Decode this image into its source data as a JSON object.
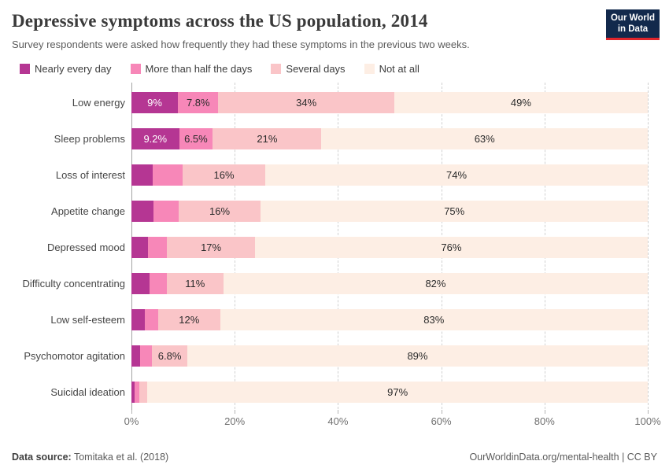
{
  "header": {
    "title": "Depressive symptoms across the US population, 2014",
    "subtitle": "Survey respondents were asked how frequently they had these symptoms in the previous two weeks.",
    "logo": {
      "line1": "Our World",
      "line2": "in Data",
      "bg_color": "#12294c",
      "stripe_color": "#e0252b"
    }
  },
  "legend": [
    {
      "label": "Nearly every day",
      "color": "#b53693"
    },
    {
      "label": "More than half the days",
      "color": "#f787b8"
    },
    {
      "label": "Several days",
      "color": "#fac5c8"
    },
    {
      "label": "Not at all",
      "color": "#fdeee4"
    }
  ],
  "chart_data": {
    "type": "bar",
    "orientation": "horizontal",
    "stacked": true,
    "categories": [
      "Low energy",
      "Sleep problems",
      "Loss of interest",
      "Appetite change",
      "Depressed mood",
      "Difficulty concentrating",
      "Low self-esteem",
      "Psychomotor agitation",
      "Suicidal ideation"
    ],
    "series": [
      {
        "name": "Nearly every day",
        "color": "#b53693",
        "text_color": "#ffffff",
        "values": [
          9,
          9.2,
          4.1,
          4.2,
          3.2,
          3.5,
          2.6,
          1.7,
          0.6
        ],
        "labels": [
          "9%",
          "9.2%",
          "",
          "",
          "",
          "",
          "",
          "",
          ""
        ]
      },
      {
        "name": "More than half the days",
        "color": "#f787b8",
        "text_color": "#2b2b2b",
        "values": [
          7.8,
          6.5,
          5.8,
          4.9,
          3.7,
          3.3,
          2.6,
          2.3,
          1.0
        ],
        "labels": [
          "7.8%",
          "6.5%",
          "",
          "",
          "",
          "",
          "",
          "",
          ""
        ]
      },
      {
        "name": "Several days",
        "color": "#fac5c8",
        "text_color": "#2b2b2b",
        "values": [
          34,
          21,
          16,
          16,
          17,
          11,
          12,
          6.8,
          1.5
        ],
        "labels": [
          "34%",
          "21%",
          "16%",
          "16%",
          "17%",
          "11%",
          "12%",
          "6.8%",
          ""
        ]
      },
      {
        "name": "Not at all",
        "color": "#fdeee4",
        "text_color": "#2b2b2b",
        "values": [
          49,
          63,
          74,
          75,
          76,
          82,
          83,
          89,
          97
        ],
        "labels": [
          "49%",
          "63%",
          "74%",
          "75%",
          "76%",
          "82%",
          "83%",
          "89%",
          "97%"
        ]
      }
    ],
    "x_axis": {
      "min": 0,
      "max": 100,
      "tick_values": [
        0,
        20,
        40,
        60,
        80,
        100
      ],
      "tick_labels": [
        "0%",
        "20%",
        "40%",
        "60%",
        "80%",
        "100%"
      ]
    },
    "grid": true,
    "legend_position": "top"
  },
  "footer": {
    "source_label": "Data source:",
    "source_value": " Tomitaka et al. (2018)",
    "credit": "OurWorldinData.org/mental-health | CC BY"
  }
}
